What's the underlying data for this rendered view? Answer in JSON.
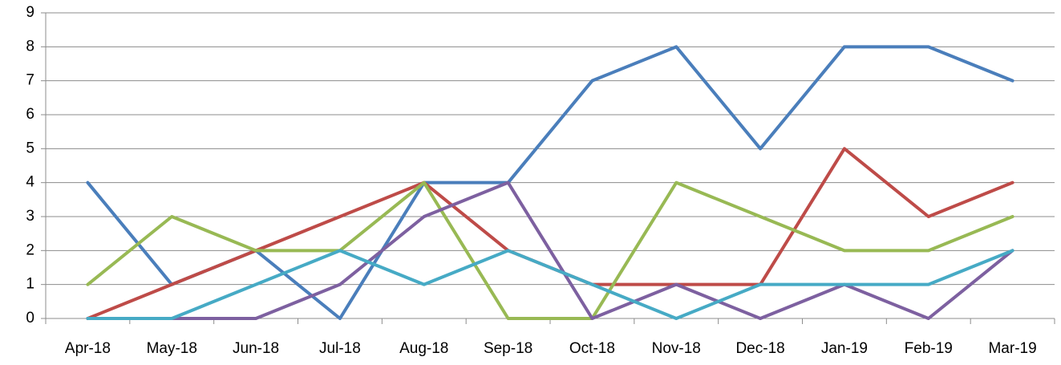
{
  "chart_data": {
    "type": "line",
    "categories": [
      "Apr-18",
      "May-18",
      "Jun-18",
      "Jul-18",
      "Aug-18",
      "Sep-18",
      "Oct-18",
      "Nov-18",
      "Dec-18",
      "Jan-19",
      "Feb-19",
      "Mar-19"
    ],
    "series": [
      {
        "color": "#4a7ebb",
        "values": [
          4,
          1,
          2,
          0,
          4,
          4,
          7,
          8,
          5,
          8,
          8,
          7
        ]
      },
      {
        "color": "#be4b48",
        "values": [
          0,
          1,
          2,
          3,
          4,
          2,
          1,
          1,
          1,
          5,
          3,
          4
        ]
      },
      {
        "color": "#98b954",
        "values": [
          1,
          3,
          2,
          2,
          4,
          0,
          0,
          4,
          3,
          2,
          2,
          3
        ]
      },
      {
        "color": "#7d60a0",
        "values": [
          0,
          0,
          0,
          1,
          3,
          4,
          0,
          1,
          0,
          1,
          0,
          2
        ]
      },
      {
        "color": "#46aac5",
        "values": [
          0,
          0,
          1,
          2,
          1,
          2,
          1,
          0,
          1,
          1,
          1,
          2
        ]
      }
    ],
    "ylim": [
      0,
      9
    ],
    "yticks": [
      0,
      1,
      2,
      3,
      4,
      5,
      6,
      7,
      8,
      9
    ],
    "grid": true
  }
}
